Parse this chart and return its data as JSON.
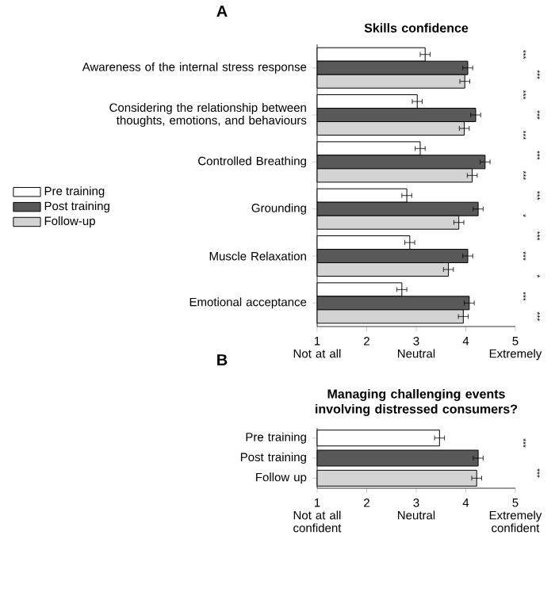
{
  "chart_data": [
    {
      "type": "bar",
      "orientation": "horizontal",
      "title": "Skills confidence",
      "categories": [
        "Awareness of the internal stress response",
        "Considering the relationship between thoughts, emotions, and behaviours",
        "Controlled Breathing",
        "Grounding",
        "Muscle Relaxation",
        "Emotional acceptance"
      ],
      "series": [
        {
          "name": "Pre training",
          "color": "#ffffff",
          "values": [
            3.18,
            3.02,
            3.08,
            2.81,
            2.87,
            2.71
          ],
          "errors": [
            0.1,
            0.1,
            0.1,
            0.1,
            0.1,
            0.1
          ]
        },
        {
          "name": "Post training",
          "color": "#595959",
          "values": [
            4.04,
            4.2,
            4.39,
            4.25,
            4.04,
            4.07
          ],
          "errors": [
            0.1,
            0.1,
            0.1,
            0.1,
            0.1,
            0.1
          ]
        },
        {
          "name": "Follow-up",
          "color": "#d3d3d3",
          "values": [
            3.98,
            3.97,
            4.13,
            3.86,
            3.65,
            3.95
          ],
          "errors": [
            0.1,
            0.1,
            0.1,
            0.1,
            0.1,
            0.1
          ]
        }
      ],
      "xlim": [
        1,
        5
      ],
      "xticks": [
        1,
        2,
        3,
        4,
        5
      ],
      "legend": "left",
      "annotations": [
        "A",
        {
          "text": "Not at all"
        },
        {
          "text": "Neutral"
        },
        {
          "text": "Extremely"
        },
        "***",
        "***",
        "***",
        "***",
        "***",
        "***",
        "***",
        "***",
        "*",
        "***",
        "***",
        "*",
        "***",
        "***"
      ]
    },
    {
      "type": "bar",
      "orientation": "horizontal",
      "title": "Managing challenging events involving distressed consumers?",
      "categories": [
        "Pre training",
        "Post training",
        "Follow up"
      ],
      "values": [
        3.47,
        4.25,
        4.22
      ],
      "colors": [
        "#ffffff",
        "#595959",
        "#d3d3d3"
      ],
      "errors": [
        0.1,
        0.1,
        0.1
      ],
      "xlim": [
        1,
        5
      ],
      "xticks": [
        1,
        2,
        3,
        4,
        5
      ],
      "annotations": [
        "B",
        {
          "text": "Not at all confident"
        },
        {
          "text": "Neutral"
        },
        {
          "text": "Extremely confident"
        },
        "***",
        "***"
      ]
    }
  ]
}
